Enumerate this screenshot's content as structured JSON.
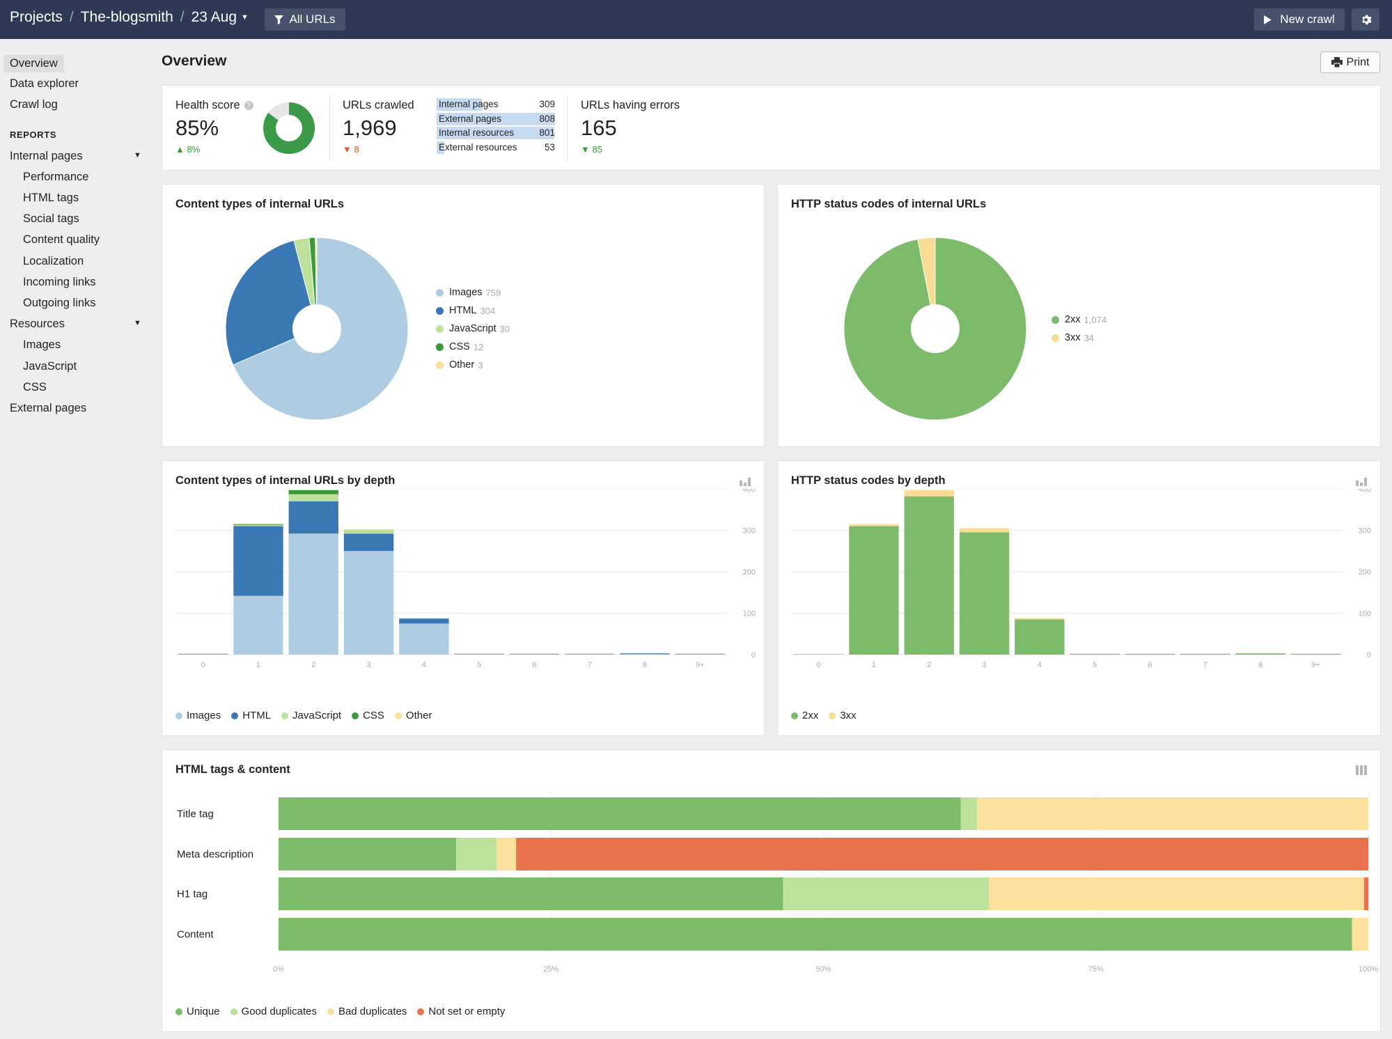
{
  "breadcrumb": {
    "projects": "Projects",
    "project": "The-blogsmith",
    "date": "23 Aug",
    "filter": "All URLs"
  },
  "header": {
    "new_crawl": "New crawl"
  },
  "sidebar": {
    "top": [
      "Overview",
      "Data explorer",
      "Crawl log"
    ],
    "reports_label": "REPORTS",
    "internal_pages": "Internal pages",
    "internal_sub": [
      "Performance",
      "HTML tags",
      "Social tags",
      "Content quality",
      "Localization",
      "Incoming links",
      "Outgoing links"
    ],
    "resources": "Resources",
    "resources_sub": [
      "Images",
      "JavaScript",
      "CSS"
    ],
    "external": "External pages"
  },
  "page": {
    "title": "Overview",
    "print": "Print"
  },
  "stats": {
    "health": {
      "label": "Health score",
      "value": "85%",
      "delta": "8%",
      "percent": 85
    },
    "crawled": {
      "label": "URLs crawled",
      "value": "1,969",
      "delta": "8"
    },
    "breakdown": [
      {
        "label": "Internal pages",
        "value": "309",
        "n": 309
      },
      {
        "label": "External pages",
        "value": "808",
        "n": 808
      },
      {
        "label": "Internal resources",
        "value": "801",
        "n": 801
      },
      {
        "label": "External resources",
        "value": "53",
        "n": 53
      }
    ],
    "errors": {
      "label": "URLs having errors",
      "value": "165",
      "delta": "85"
    }
  },
  "colors": {
    "images": "#aecde3",
    "html": "#3a78b5",
    "javascript": "#bde09a",
    "css": "#3a9a3a",
    "other": "#fbe19c",
    "s2xx": "#7bbb6a",
    "s3xx": "#f8dc93",
    "unique": "#7bbb6a",
    "good": "#bde09a",
    "bad": "#fbe19c",
    "notset": "#e8734a"
  },
  "content_types": {
    "title": "Content types of internal URLs",
    "chart_data": {
      "type": "pie",
      "slices": [
        {
          "name": "Images",
          "value": 759,
          "label": "759"
        },
        {
          "name": "HTML",
          "value": 304,
          "label": "304"
        },
        {
          "name": "JavaScript",
          "value": 30,
          "label": "30"
        },
        {
          "name": "CSS",
          "value": 12,
          "label": "12"
        },
        {
          "name": "Other",
          "value": 3,
          "label": "3"
        }
      ]
    }
  },
  "status_codes": {
    "title": "HTTP status codes of internal URLs",
    "chart_data": {
      "type": "pie",
      "slices": [
        {
          "name": "2xx",
          "value": 1074,
          "label": "1,074"
        },
        {
          "name": "3xx",
          "value": 34,
          "label": "34"
        }
      ]
    }
  },
  "content_depth": {
    "title": "Content types of internal URLs by depth",
    "chart_data": {
      "type": "bar",
      "stacked": true,
      "categories": [
        "0",
        "1",
        "2",
        "3",
        "4",
        "5",
        "6",
        "7",
        "8",
        "9+"
      ],
      "ylim": [
        0,
        400
      ],
      "yticks": [
        "0",
        "100",
        "200",
        "300",
        "400"
      ],
      "series": [
        {
          "name": "Images",
          "values": [
            1,
            142,
            292,
            250,
            75,
            1,
            1,
            1,
            1,
            1
          ]
        },
        {
          "name": "HTML",
          "values": [
            1,
            168,
            78,
            42,
            12,
            1,
            1,
            1,
            2,
            1
          ]
        },
        {
          "name": "JavaScript",
          "values": [
            0,
            3,
            17,
            10,
            0,
            0,
            0,
            0,
            0,
            0
          ]
        },
        {
          "name": "CSS",
          "values": [
            0,
            2,
            10,
            0,
            0,
            0,
            0,
            0,
            0,
            0
          ]
        },
        {
          "name": "Other",
          "values": [
            0,
            0,
            0,
            0,
            0,
            0,
            0,
            0,
            0,
            0
          ]
        }
      ]
    }
  },
  "status_depth": {
    "title": "HTTP status codes by depth",
    "chart_data": {
      "type": "bar",
      "stacked": true,
      "categories": [
        "0",
        "1",
        "2",
        "3",
        "4",
        "5",
        "6",
        "7",
        "8",
        "9+"
      ],
      "ylim": [
        0,
        400
      ],
      "yticks": [
        "0",
        "100",
        "200",
        "300",
        "400"
      ],
      "series": [
        {
          "name": "2xx",
          "values": [
            1,
            310,
            382,
            295,
            85,
            2,
            2,
            2,
            3,
            2
          ]
        },
        {
          "name": "3xx",
          "values": [
            0,
            5,
            15,
            10,
            3,
            0,
            0,
            0,
            0,
            0
          ]
        }
      ]
    }
  },
  "html_tags": {
    "title": "HTML tags & content",
    "chart_data": {
      "type": "bar",
      "orientation": "horizontal",
      "stacked": true,
      "percent": true,
      "categories": [
        "Title tag",
        "Meta description",
        "H1 tag",
        "Content"
      ],
      "xticks": [
        "0%",
        "25%",
        "50%",
        "75%",
        "100%"
      ],
      "series": [
        {
          "name": "Unique",
          "values": [
            62.6,
            16.3,
            46.3,
            98.5
          ]
        },
        {
          "name": "Good duplicates",
          "values": [
            1.5,
            3.7,
            18.9,
            0
          ]
        },
        {
          "name": "Bad duplicates",
          "values": [
            35.9,
            1.8,
            34.4,
            1.5
          ]
        },
        {
          "name": "Not set or empty",
          "values": [
            0,
            78.2,
            0.4,
            0
          ]
        }
      ]
    }
  }
}
